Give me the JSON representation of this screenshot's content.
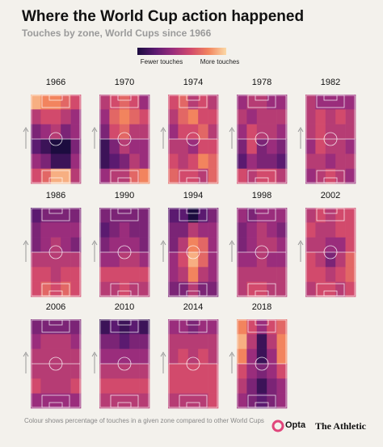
{
  "chart_data": {
    "type": "heatmap",
    "title": "Where the World Cup action happened",
    "subtitle": "Touches by zone, World Cups since 1966",
    "legend_labels": [
      "Fewer touches",
      "More touches"
    ],
    "colorscale": [
      "#1c0c3f",
      "#5b1a70",
      "#9a2d7c",
      "#d24a6c",
      "#f2845e",
      "#fbd9a6"
    ],
    "note": "Colour shows percentage of touches in a given zone compared to other World Cups",
    "logos": [
      "Opta",
      "The Athletic"
    ],
    "panels": [
      {
        "title": "1966",
        "values": [
          [
            0.9,
            0.8,
            0.8,
            0.7,
            0.6
          ],
          [
            0.5,
            0.6,
            0.6,
            0.5,
            0.4
          ],
          [
            0.3,
            0.4,
            0.5,
            0.3,
            0.4
          ],
          [
            0.2,
            0.1,
            0.0,
            0.0,
            0.3
          ],
          [
            0.4,
            0.3,
            0.1,
            0.1,
            0.4
          ],
          [
            0.6,
            0.7,
            0.9,
            0.9,
            0.5
          ]
        ]
      },
      {
        "title": "1970",
        "values": [
          [
            0.5,
            0.6,
            0.7,
            0.6,
            0.4
          ],
          [
            0.4,
            0.7,
            0.8,
            0.7,
            0.6
          ],
          [
            0.3,
            0.6,
            0.7,
            0.5,
            0.5
          ],
          [
            0.1,
            0.3,
            0.5,
            0.4,
            0.4
          ],
          [
            0.1,
            0.2,
            0.3,
            0.5,
            0.4
          ],
          [
            0.4,
            0.5,
            0.5,
            0.7,
            0.8
          ]
        ]
      },
      {
        "title": "1974",
        "values": [
          [
            0.6,
            0.7,
            0.5,
            0.6,
            0.5
          ],
          [
            0.5,
            0.7,
            0.8,
            0.6,
            0.6
          ],
          [
            0.4,
            0.6,
            0.6,
            0.7,
            0.5
          ],
          [
            0.5,
            0.5,
            0.4,
            0.6,
            0.6
          ],
          [
            0.6,
            0.5,
            0.6,
            0.8,
            0.7
          ],
          [
            0.7,
            0.6,
            0.6,
            0.5,
            0.7
          ]
        ]
      },
      {
        "title": "1978",
        "values": [
          [
            0.4,
            0.5,
            0.5,
            0.4,
            0.4
          ],
          [
            0.5,
            0.4,
            0.5,
            0.5,
            0.5
          ],
          [
            0.4,
            0.6,
            0.5,
            0.5,
            0.4
          ],
          [
            0.3,
            0.6,
            0.3,
            0.4,
            0.3
          ],
          [
            0.2,
            0.4,
            0.3,
            0.3,
            0.2
          ],
          [
            0.6,
            0.5,
            0.6,
            0.6,
            0.5
          ]
        ]
      },
      {
        "title": "1982",
        "values": [
          [
            0.5,
            0.4,
            0.4,
            0.4,
            0.4
          ],
          [
            0.5,
            0.6,
            0.5,
            0.6,
            0.5
          ],
          [
            0.5,
            0.6,
            0.5,
            0.5,
            0.5
          ],
          [
            0.4,
            0.6,
            0.5,
            0.5,
            0.4
          ],
          [
            0.5,
            0.5,
            0.4,
            0.5,
            0.5
          ],
          [
            0.4,
            0.5,
            0.6,
            0.5,
            0.4
          ]
        ]
      },
      {
        "title": "1986",
        "values": [
          [
            0.2,
            0.3,
            0.3,
            0.3,
            0.3
          ],
          [
            0.3,
            0.4,
            0.4,
            0.4,
            0.4
          ],
          [
            0.3,
            0.4,
            0.5,
            0.4,
            0.3
          ],
          [
            0.5,
            0.5,
            0.5,
            0.5,
            0.5
          ],
          [
            0.6,
            0.6,
            0.5,
            0.6,
            0.6
          ],
          [
            0.6,
            0.7,
            0.6,
            0.7,
            0.6
          ]
        ]
      },
      {
        "title": "1990",
        "values": [
          [
            0.3,
            0.3,
            0.3,
            0.3,
            0.3
          ],
          [
            0.2,
            0.3,
            0.4,
            0.3,
            0.3
          ],
          [
            0.3,
            0.4,
            0.4,
            0.4,
            0.3
          ],
          [
            0.4,
            0.4,
            0.5,
            0.5,
            0.4
          ],
          [
            0.6,
            0.6,
            0.6,
            0.6,
            0.6
          ],
          [
            0.5,
            0.5,
            0.6,
            0.5,
            0.5
          ]
        ]
      },
      {
        "title": "1994",
        "values": [
          [
            0.2,
            0.2,
            0.0,
            0.2,
            0.3
          ],
          [
            0.3,
            0.3,
            0.5,
            0.4,
            0.4
          ],
          [
            0.3,
            0.5,
            0.8,
            0.7,
            0.4
          ],
          [
            0.4,
            0.6,
            0.9,
            0.7,
            0.4
          ],
          [
            0.4,
            0.5,
            0.8,
            0.5,
            0.4
          ],
          [
            0.3,
            0.3,
            0.5,
            0.3,
            0.3
          ]
        ]
      },
      {
        "title": "1998",
        "values": [
          [
            0.4,
            0.3,
            0.4,
            0.4,
            0.4
          ],
          [
            0.3,
            0.4,
            0.5,
            0.4,
            0.3
          ],
          [
            0.3,
            0.4,
            0.5,
            0.5,
            0.4
          ],
          [
            0.4,
            0.4,
            0.5,
            0.4,
            0.4
          ],
          [
            0.5,
            0.5,
            0.5,
            0.5,
            0.5
          ],
          [
            0.5,
            0.6,
            0.6,
            0.5,
            0.5
          ]
        ]
      },
      {
        "title": "2002",
        "values": [
          [
            0.5,
            0.6,
            0.5,
            0.6,
            0.6
          ],
          [
            0.6,
            0.5,
            0.5,
            0.6,
            0.6
          ],
          [
            0.5,
            0.5,
            0.4,
            0.4,
            0.6
          ],
          [
            0.6,
            0.5,
            0.3,
            0.5,
            0.7
          ],
          [
            0.6,
            0.6,
            0.5,
            0.6,
            0.7
          ],
          [
            0.5,
            0.6,
            0.6,
            0.5,
            0.6
          ]
        ]
      },
      {
        "title": "2006",
        "values": [
          [
            0.3,
            0.3,
            0.3,
            0.3,
            0.3
          ],
          [
            0.4,
            0.5,
            0.5,
            0.5,
            0.4
          ],
          [
            0.5,
            0.5,
            0.5,
            0.5,
            0.5
          ],
          [
            0.5,
            0.5,
            0.5,
            0.5,
            0.5
          ],
          [
            0.6,
            0.5,
            0.5,
            0.5,
            0.6
          ],
          [
            0.4,
            0.4,
            0.4,
            0.4,
            0.4
          ]
        ]
      },
      {
        "title": "2010",
        "values": [
          [
            0.1,
            0.2,
            0.1,
            0.2,
            0.1
          ],
          [
            0.3,
            0.3,
            0.2,
            0.3,
            0.3
          ],
          [
            0.4,
            0.4,
            0.4,
            0.4,
            0.4
          ],
          [
            0.5,
            0.5,
            0.5,
            0.5,
            0.5
          ],
          [
            0.6,
            0.6,
            0.6,
            0.6,
            0.6
          ],
          [
            0.5,
            0.5,
            0.5,
            0.5,
            0.5
          ]
        ]
      },
      {
        "title": "2014",
        "values": [
          [
            0.4,
            0.4,
            0.3,
            0.4,
            0.4
          ],
          [
            0.5,
            0.5,
            0.5,
            0.5,
            0.5
          ],
          [
            0.5,
            0.6,
            0.5,
            0.6,
            0.5
          ],
          [
            0.6,
            0.6,
            0.6,
            0.6,
            0.6
          ],
          [
            0.6,
            0.6,
            0.6,
            0.6,
            0.6
          ],
          [
            0.5,
            0.5,
            0.5,
            0.5,
            0.6
          ]
        ]
      },
      {
        "title": "2018",
        "values": [
          [
            0.8,
            0.6,
            0.4,
            0.6,
            0.7
          ],
          [
            0.9,
            0.5,
            0.1,
            0.5,
            0.8
          ],
          [
            0.8,
            0.4,
            0.1,
            0.4,
            0.8
          ],
          [
            0.6,
            0.4,
            0.3,
            0.4,
            0.6
          ],
          [
            0.5,
            0.3,
            0.1,
            0.3,
            0.4
          ],
          [
            0.4,
            0.3,
            0.2,
            0.3,
            0.4
          ]
        ]
      }
    ]
  }
}
